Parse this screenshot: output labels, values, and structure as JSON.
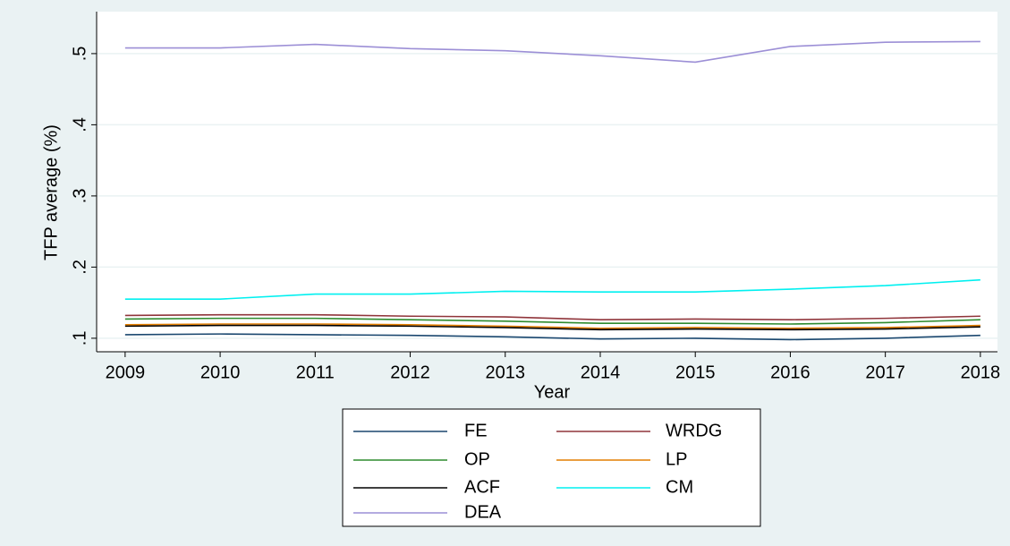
{
  "chart_data": {
    "type": "line",
    "y_label": "TFP average (%)",
    "x_label": "Year",
    "x": [
      2009,
      2010,
      2011,
      2012,
      2013,
      2014,
      2015,
      2016,
      2017,
      2018
    ],
    "xlim": [
      2008.7,
      2018.18
    ],
    "xticks": [
      2009,
      2010,
      2011,
      2012,
      2013,
      2014,
      2015,
      2016,
      2017,
      2018
    ],
    "ylim": [
      0.081,
      0.559
    ],
    "yticks": [
      {
        "value": 0.1,
        "label": ".1"
      },
      {
        "value": 0.2,
        "label": ".2"
      },
      {
        "value": 0.3,
        "label": ".3"
      },
      {
        "value": 0.4,
        "label": ".4"
      },
      {
        "value": 0.5,
        "label": ".5"
      }
    ],
    "grid": true,
    "legend_position": "bottom",
    "series": [
      {
        "name": "FE",
        "color": "#1a476f",
        "values": [
          0.105,
          0.106,
          0.105,
          0.104,
          0.102,
          0.099,
          0.1,
          0.098,
          0.1,
          0.104
        ]
      },
      {
        "name": "WRDG",
        "color": "#90353b",
        "values": [
          0.132,
          0.133,
          0.133,
          0.131,
          0.13,
          0.126,
          0.127,
          0.126,
          0.128,
          0.131
        ]
      },
      {
        "name": "OP",
        "color": "#2e8b2e",
        "values": [
          0.127,
          0.128,
          0.128,
          0.126,
          0.124,
          0.121,
          0.121,
          0.12,
          0.122,
          0.126
        ]
      },
      {
        "name": "LP",
        "color": "#e37e00",
        "values": [
          0.119,
          0.12,
          0.12,
          0.119,
          0.117,
          0.114,
          0.115,
          0.114,
          0.115,
          0.118
        ]
      },
      {
        "name": "ACF",
        "color": "#000000",
        "values": [
          0.117,
          0.118,
          0.118,
          0.117,
          0.115,
          0.112,
          0.113,
          0.112,
          0.113,
          0.116
        ]
      },
      {
        "name": "CM",
        "color": "#00f0f0",
        "values": [
          0.155,
          0.155,
          0.162,
          0.162,
          0.166,
          0.165,
          0.165,
          0.169,
          0.174,
          0.182
        ]
      },
      {
        "name": "DEA",
        "color": "#9c8fd6",
        "values": [
          0.508,
          0.508,
          0.513,
          0.507,
          0.504,
          0.497,
          0.488,
          0.51,
          0.516,
          0.517
        ]
      }
    ]
  }
}
